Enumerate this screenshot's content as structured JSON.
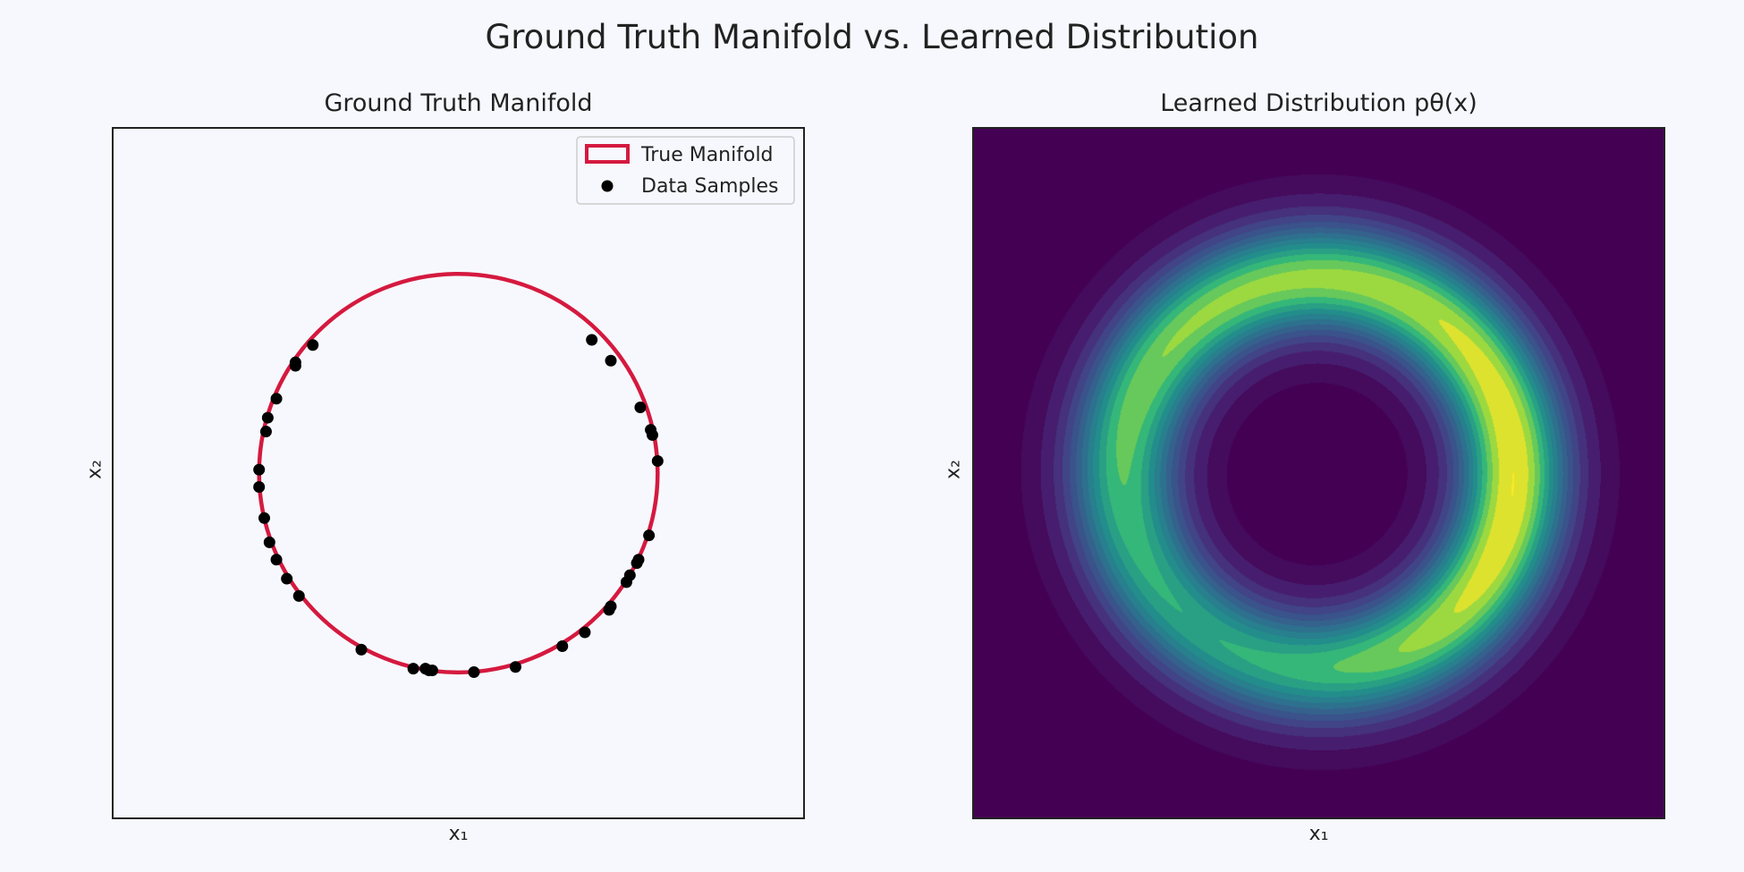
{
  "suptitle": "Ground Truth Manifold vs. Learned Distribution",
  "chart_data": [
    {
      "type": "scatter",
      "title": "Ground Truth Manifold",
      "xlabel": "x₁",
      "ylabel": "x₂",
      "xlim": [
        -2,
        2
      ],
      "ylim": [
        -2,
        2
      ],
      "legend_position": "top-right",
      "colors": {
        "manifold": "#d5193f",
        "samples": "#000000",
        "frame": "#222222"
      },
      "manifold": {
        "name": "True Manifold",
        "shape": "circle",
        "radius": 1.15,
        "center": [
          0,
          0
        ]
      },
      "series": [
        {
          "name": "Data Samples",
          "x": [
            0.77,
            0.88,
            1.05,
            1.11,
            1.12,
            1.15,
            1.1,
            1.04,
            1.03,
            0.99,
            0.97,
            0.88,
            0.87,
            0.73,
            0.6,
            0.33,
            0.09,
            -0.15,
            -0.17,
            -0.19,
            -0.26,
            -0.56,
            -0.92,
            -0.99,
            -1.05,
            -1.09,
            -1.12,
            -1.15,
            -1.15,
            -1.11,
            -1.1,
            -1.05,
            -0.94,
            -0.94,
            -0.84
          ],
          "y": [
            0.77,
            0.65,
            0.38,
            0.25,
            0.22,
            0.07,
            -0.36,
            -0.5,
            -0.52,
            -0.59,
            -0.63,
            -0.77,
            -0.79,
            -0.92,
            -1.0,
            -1.12,
            -1.15,
            -1.14,
            -1.14,
            -1.13,
            -1.13,
            -1.02,
            -0.71,
            -0.61,
            -0.5,
            -0.4,
            -0.26,
            -0.08,
            0.02,
            0.24,
            0.32,
            0.43,
            0.62,
            0.64,
            0.74
          ]
        }
      ]
    },
    {
      "type": "heatmap",
      "title": "Learned Distribution pθ(x)",
      "xlabel": "x₁",
      "ylabel": "x₂",
      "xlim": [
        -2,
        2
      ],
      "ylim": [
        -2,
        2
      ],
      "colormap": "viridis",
      "colors": {
        "low": "#440154",
        "mid": "#21918c",
        "high": "#fde725"
      },
      "density_model": "ring",
      "ring_radius": 1.13,
      "ring_width": 0.22
    }
  ]
}
